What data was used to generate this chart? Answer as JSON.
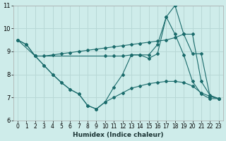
{
  "xlabel": "Humidex (Indice chaleur)",
  "xlim": [
    -0.5,
    23.5
  ],
  "ylim": [
    6,
    11
  ],
  "yticks": [
    6,
    7,
    8,
    9,
    10,
    11
  ],
  "xticks": [
    0,
    1,
    2,
    3,
    4,
    5,
    6,
    7,
    8,
    9,
    10,
    11,
    12,
    13,
    14,
    15,
    16,
    17,
    18,
    19,
    20,
    21,
    22,
    23
  ],
  "bg_color": "#ceecea",
  "grid_color": "#b8d8d6",
  "line_color": "#1a6b6b",
  "lines": [
    {
      "x": [
        0,
        2,
        10,
        11,
        12,
        13,
        14,
        15,
        16,
        17,
        18,
        19,
        20,
        21,
        22,
        23
      ],
      "y": [
        9.5,
        8.8,
        8.8,
        8.8,
        8.8,
        8.85,
        8.85,
        8.85,
        9.3,
        10.5,
        11.0,
        9.75,
        8.9,
        8.9,
        7.05,
        6.95
      ]
    },
    {
      "x": [
        0,
        1,
        2,
        3,
        4,
        5,
        6,
        7,
        8,
        9,
        10,
        11,
        12,
        13,
        14,
        15,
        16,
        17,
        18,
        19,
        20,
        21,
        22,
        23
      ],
      "y": [
        9.5,
        9.3,
        8.8,
        8.8,
        8.85,
        8.9,
        8.95,
        9.0,
        9.05,
        9.1,
        9.15,
        9.2,
        9.25,
        9.3,
        9.35,
        9.4,
        9.45,
        9.5,
        9.6,
        9.75,
        9.75,
        7.7,
        7.1,
        6.95
      ]
    },
    {
      "x": [
        0,
        1,
        2,
        3,
        4,
        5,
        6,
        7,
        8,
        9,
        10,
        11,
        12,
        13,
        14,
        15,
        16,
        17,
        18,
        19,
        20,
        21,
        22,
        23
      ],
      "y": [
        9.5,
        9.3,
        8.8,
        8.4,
        8.0,
        7.65,
        7.35,
        7.15,
        6.65,
        6.5,
        6.8,
        7.45,
        8.0,
        8.85,
        8.85,
        8.7,
        8.9,
        10.5,
        9.75,
        8.85,
        7.7,
        7.15,
        6.95,
        6.95
      ]
    },
    {
      "x": [
        2,
        3,
        4,
        5,
        6,
        7,
        8,
        9,
        10,
        11,
        12,
        13,
        14,
        15,
        16,
        17,
        18,
        19,
        20,
        21,
        22,
        23
      ],
      "y": [
        8.8,
        8.4,
        8.0,
        7.65,
        7.35,
        7.15,
        6.65,
        6.5,
        6.8,
        7.0,
        7.2,
        7.4,
        7.5,
        7.6,
        7.65,
        7.7,
        7.7,
        7.65,
        7.5,
        7.2,
        7.05,
        6.95
      ]
    }
  ]
}
